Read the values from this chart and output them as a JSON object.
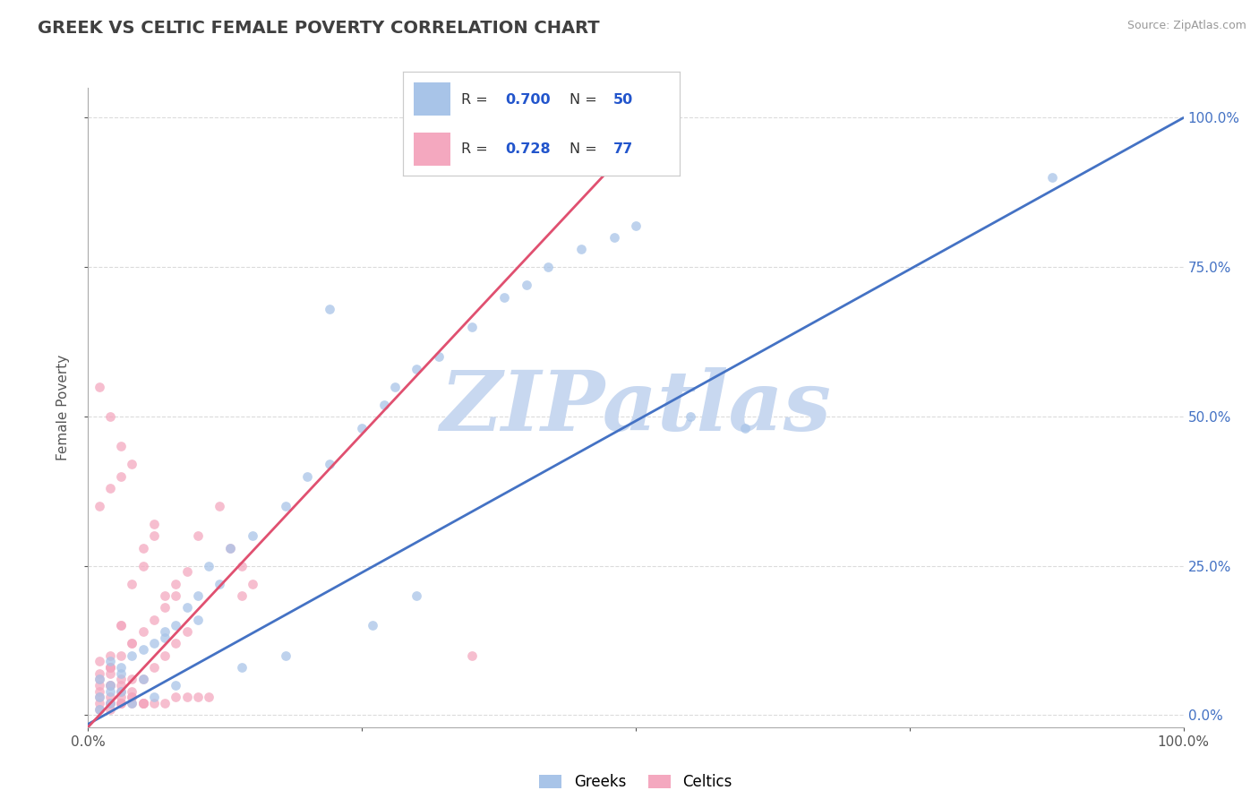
{
  "title": "GREEK VS CELTIC FEMALE POVERTY CORRELATION CHART",
  "source": "Source: ZipAtlas.com",
  "ylabel": "Female Poverty",
  "xlim": [
    0.0,
    1.0
  ],
  "ylim": [
    -0.02,
    1.05
  ],
  "x_tick_labels": [
    "0.0%",
    "100.0%"
  ],
  "y_tick_labels": [
    "0.0%",
    "25.0%",
    "50.0%",
    "75.0%",
    "100.0%"
  ],
  "y_tick_vals": [
    0.0,
    0.25,
    0.5,
    0.75,
    1.0
  ],
  "greek_R": 0.7,
  "greek_N": 50,
  "celtic_R": 0.728,
  "celtic_N": 77,
  "greek_color": "#a8c4e8",
  "celtic_color": "#f4a8bf",
  "greek_line_color": "#4472c4",
  "celtic_line_color": "#e05070",
  "title_color": "#404040",
  "source_color": "#999999",
  "watermark_color": "#c8d8f0",
  "legend_R_color": "#2255cc",
  "grid_color": "#cccccc",
  "axis_color": "#aaaaaa",
  "greek_line_x": [
    0.0,
    1.0
  ],
  "greek_line_y": [
    -0.02,
    1.0
  ],
  "celtic_line_x": [
    0.0,
    0.52
  ],
  "celtic_line_y": [
    -0.02,
    1.0
  ],
  "greek_scatter_x": [
    0.02,
    0.03,
    0.04,
    0.01,
    0.06,
    0.05,
    0.03,
    0.02,
    0.08,
    0.07,
    0.09,
    0.12,
    0.1,
    0.15,
    0.13,
    0.11,
    0.18,
    0.2,
    0.22,
    0.25,
    0.27,
    0.3,
    0.28,
    0.32,
    0.35,
    0.38,
    0.4,
    0.42,
    0.45,
    0.48,
    0.5,
    0.22,
    0.26,
    0.18,
    0.14,
    0.08,
    0.06,
    0.04,
    0.03,
    0.02,
    0.01,
    0.01,
    0.02,
    0.05,
    0.07,
    0.1,
    0.55,
    0.6,
    0.3,
    0.88
  ],
  "greek_scatter_y": [
    0.05,
    0.08,
    0.1,
    0.03,
    0.12,
    0.06,
    0.04,
    0.02,
    0.15,
    0.13,
    0.18,
    0.22,
    0.2,
    0.3,
    0.28,
    0.25,
    0.35,
    0.4,
    0.42,
    0.48,
    0.52,
    0.58,
    0.55,
    0.6,
    0.65,
    0.7,
    0.72,
    0.75,
    0.78,
    0.8,
    0.82,
    0.68,
    0.15,
    0.1,
    0.08,
    0.05,
    0.03,
    0.02,
    0.07,
    0.04,
    0.06,
    0.01,
    0.09,
    0.11,
    0.14,
    0.16,
    0.5,
    0.48,
    0.2,
    0.9
  ],
  "celtic_scatter_x": [
    0.01,
    0.02,
    0.02,
    0.03,
    0.01,
    0.02,
    0.03,
    0.01,
    0.02,
    0.03,
    0.04,
    0.05,
    0.06,
    0.04,
    0.05,
    0.06,
    0.07,
    0.08,
    0.03,
    0.04,
    0.02,
    0.03,
    0.04,
    0.05,
    0.03,
    0.04,
    0.05,
    0.02,
    0.03,
    0.02,
    0.01,
    0.02,
    0.01,
    0.02,
    0.03,
    0.04,
    0.05,
    0.03,
    0.04,
    0.05,
    0.06,
    0.07,
    0.08,
    0.09,
    0.1,
    0.11,
    0.07,
    0.08,
    0.09,
    0.06,
    0.05,
    0.04,
    0.03,
    0.07,
    0.08,
    0.09,
    0.06,
    0.05,
    0.04,
    0.03,
    0.02,
    0.01,
    0.01,
    0.02,
    0.01,
    0.01,
    0.02,
    0.03,
    0.01,
    0.02,
    0.13,
    0.14,
    0.15,
    0.14,
    0.35,
    0.12,
    0.1
  ],
  "celtic_scatter_y": [
    0.05,
    0.08,
    0.1,
    0.15,
    0.55,
    0.5,
    0.45,
    0.35,
    0.38,
    0.4,
    0.42,
    0.28,
    0.32,
    0.22,
    0.25,
    0.3,
    0.18,
    0.2,
    0.15,
    0.12,
    0.08,
    0.06,
    0.04,
    0.02,
    0.03,
    0.03,
    0.02,
    0.02,
    0.02,
    0.02,
    0.02,
    0.03,
    0.01,
    0.01,
    0.02,
    0.02,
    0.02,
    0.02,
    0.03,
    0.02,
    0.02,
    0.02,
    0.03,
    0.03,
    0.03,
    0.03,
    0.1,
    0.12,
    0.14,
    0.08,
    0.06,
    0.06,
    0.05,
    0.2,
    0.22,
    0.24,
    0.16,
    0.14,
    0.12,
    0.1,
    0.08,
    0.06,
    0.04,
    0.05,
    0.03,
    0.07,
    0.05,
    0.04,
    0.09,
    0.07,
    0.28,
    0.25,
    0.22,
    0.2,
    0.1,
    0.35,
    0.3
  ]
}
